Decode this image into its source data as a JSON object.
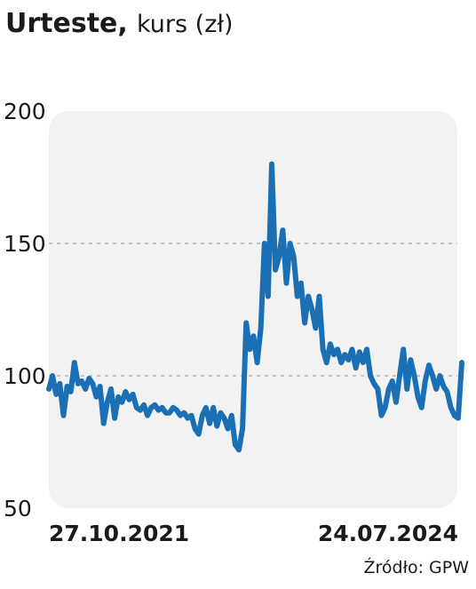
{
  "chart_data": {
    "type": "line",
    "title": "Urteste,",
    "subtitle": "kurs (zł)",
    "source": "Źródło: GPW",
    "categories": [
      "27.10.2021",
      null,
      null,
      null,
      null,
      null,
      null,
      null,
      null,
      null,
      null,
      null,
      null,
      null,
      null,
      null,
      null,
      null,
      null,
      null,
      null,
      null,
      null,
      null,
      null,
      null,
      null,
      null,
      null,
      null,
      null,
      null,
      null,
      null,
      null,
      null,
      null,
      null,
      null,
      null,
      null,
      null,
      null,
      null,
      null,
      null,
      null,
      null,
      null,
      null,
      null,
      null,
      null,
      null,
      null,
      null,
      null,
      null,
      null,
      null,
      null,
      null,
      null,
      null,
      null,
      null,
      null,
      null,
      null,
      null,
      null,
      null,
      null,
      null,
      null,
      null,
      null,
      null,
      null,
      null,
      null,
      null,
      null,
      null,
      null,
      null,
      null,
      null,
      null,
      null,
      null,
      null,
      null,
      null,
      null,
      null,
      null,
      null,
      null,
      null,
      null,
      null,
      null,
      null,
      null,
      null,
      null,
      null,
      null,
      null,
      null,
      null,
      null,
      "24.07.2024"
    ],
    "values": [
      95,
      100,
      93,
      97,
      85,
      96,
      94,
      105,
      97,
      98,
      95,
      99,
      97,
      92,
      96,
      82,
      90,
      95,
      84,
      92,
      90,
      94,
      91,
      93,
      88,
      87,
      89,
      85,
      88,
      89,
      87,
      88,
      86,
      86,
      88,
      87,
      85,
      86,
      84,
      85,
      80,
      78,
      85,
      88,
      82,
      88,
      81,
      86,
      84,
      80,
      85,
      74,
      72,
      80,
      120,
      110,
      115,
      105,
      118,
      150,
      130,
      180,
      140,
      145,
      155,
      135,
      150,
      145,
      130,
      135,
      120,
      130,
      125,
      118,
      130,
      110,
      105,
      112,
      108,
      110,
      105,
      108,
      106,
      110,
      103,
      109,
      105,
      110,
      100,
      97,
      95,
      85,
      88,
      95,
      98,
      90,
      100,
      110,
      95,
      106,
      100,
      92,
      88,
      98,
      104,
      100,
      95,
      100,
      96,
      94,
      88,
      85,
      84,
      105
    ],
    "color": "#1a6fb5",
    "ylim": [
      50,
      200
    ],
    "yticks": [
      50,
      100,
      150,
      200
    ],
    "grid": true
  }
}
